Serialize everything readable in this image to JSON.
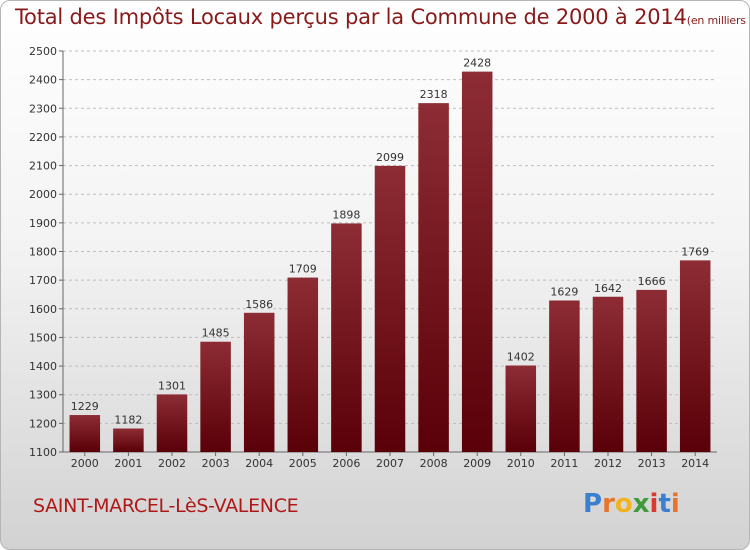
{
  "title": "Total des Impôts Locaux perçus par la Commune de 2000 à 2014",
  "title_unit": "(en milliers d'€)",
  "commune": "SAINT-MARCEL-LèS-VALENCE",
  "logo": {
    "text": "Proxiti",
    "letter_colors": [
      "#3b7fd0",
      "#e8742b",
      "#f2b321",
      "#3f9a3a",
      "#d93a30",
      "#3b7fd0",
      "#e8742b"
    ]
  },
  "colors": {
    "bar_light": "#8d2c34",
    "bar_dark": "#5a0008",
    "title": "#8a1a1a",
    "commune": "#b01818"
  },
  "chart_data": {
    "type": "bar",
    "title": "Total des Impôts Locaux perçus par la Commune de 2000 à 2014",
    "xlabel": "",
    "ylabel": "",
    "categories": [
      "2000",
      "2001",
      "2002",
      "2003",
      "2004",
      "2005",
      "2006",
      "2007",
      "2008",
      "2009",
      "2010",
      "2011",
      "2012",
      "2013",
      "2014"
    ],
    "values": [
      1229,
      1182,
      1301,
      1485,
      1586,
      1709,
      1898,
      2099,
      2318,
      2428,
      1402,
      1629,
      1642,
      1666,
      1769
    ],
    "ylim": [
      1100,
      2500
    ],
    "yticks": [
      1100,
      1200,
      1300,
      1400,
      1500,
      1600,
      1700,
      1800,
      1900,
      2000,
      2100,
      2200,
      2300,
      2400,
      2500
    ],
    "grid": true,
    "legend": "none"
  }
}
